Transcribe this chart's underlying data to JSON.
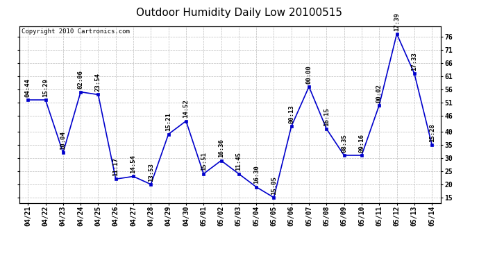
{
  "title": "Outdoor Humidity Daily Low 20100515",
  "copyright": "Copyright 2010 Cartronics.com",
  "line_color": "#0000cc",
  "marker_color": "#0000cc",
  "background_color": "#ffffff",
  "grid_color": "#bbbbbb",
  "x_labels": [
    "04/21",
    "04/22",
    "04/23",
    "04/24",
    "04/25",
    "04/26",
    "04/27",
    "04/28",
    "04/29",
    "04/30",
    "05/01",
    "05/02",
    "05/03",
    "05/04",
    "05/05",
    "05/06",
    "05/07",
    "05/08",
    "05/09",
    "05/10",
    "05/11",
    "05/12",
    "05/13",
    "05/14"
  ],
  "y_values": [
    52,
    52,
    32,
    55,
    54,
    22,
    23,
    20,
    39,
    44,
    24,
    29,
    24,
    19,
    15,
    42,
    57,
    41,
    31,
    31,
    50,
    77,
    62,
    35
  ],
  "point_labels": [
    "04:44",
    "15:29",
    "10:04",
    "02:06",
    "23:54",
    "11:17",
    "14:54",
    "13:53",
    "15:21",
    "14:52",
    "15:51",
    "16:36",
    "11:45",
    "16:30",
    "15:05",
    "00:13",
    "00:00",
    "16:15",
    "08:35",
    "09:16",
    "00:02",
    "17:39",
    "17:33",
    "15:28"
  ],
  "ylim_min": 13,
  "ylim_max": 80,
  "ytick_positions": [
    15,
    20,
    25,
    30,
    35,
    40,
    46,
    51,
    56,
    61,
    66,
    71,
    76
  ],
  "title_fontsize": 11,
  "label_fontsize": 6.5,
  "tick_fontsize": 7,
  "copyright_fontsize": 6.5
}
